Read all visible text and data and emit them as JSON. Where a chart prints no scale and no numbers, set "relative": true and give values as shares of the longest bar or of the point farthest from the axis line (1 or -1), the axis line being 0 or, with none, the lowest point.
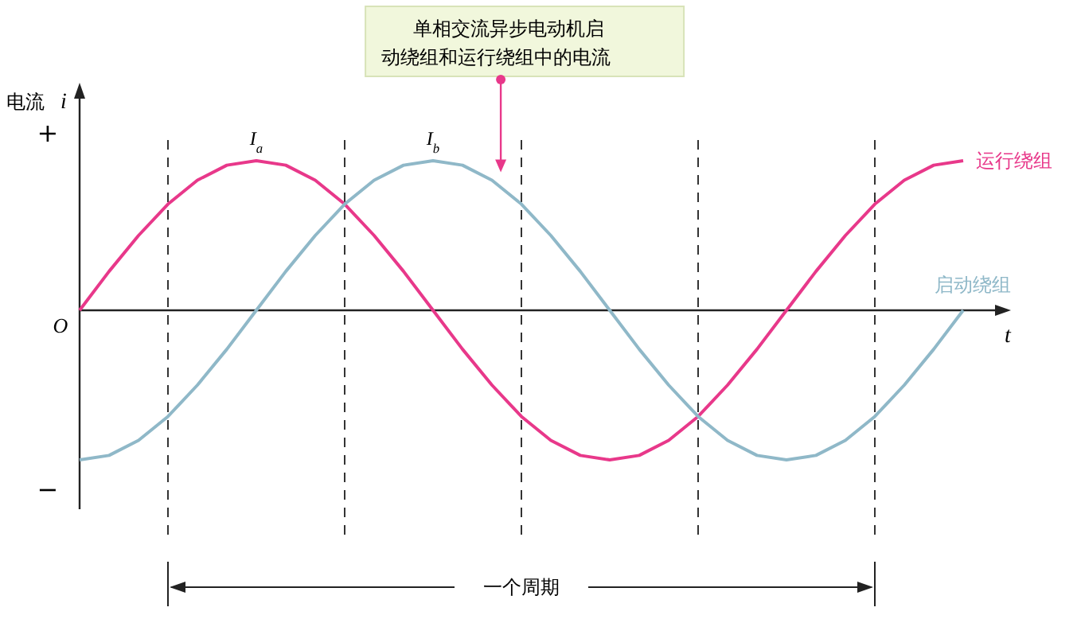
{
  "chart_data": {
    "type": "line",
    "relative": true,
    "xlabel": "t",
    "ylabel": "i",
    "categories": [
      null,
      null,
      null,
      null,
      null,
      null,
      null,
      null,
      null,
      null,
      null,
      null,
      null,
      null,
      null,
      null,
      null,
      null,
      null,
      null,
      null,
      null,
      null,
      null,
      null,
      null,
      null,
      null,
      null,
      null,
      null
    ],
    "series": [
      {
        "name": "运行绕组",
        "color": "#e8388a",
        "values": [
          0,
          0.26,
          0.5,
          0.71,
          0.87,
          0.97,
          1,
          0.97,
          0.87,
          0.71,
          0.5,
          0.26,
          0,
          -0.26,
          -0.5,
          -0.71,
          -0.87,
          -0.97,
          -1,
          -0.97,
          -0.87,
          -0.71,
          -0.5,
          -0.26,
          0,
          0.26,
          0.5,
          0.71,
          0.87,
          0.97,
          1
        ]
      },
      {
        "name": "启动绕组",
        "color": "#8fb8c8",
        "values": [
          -1,
          -0.97,
          -0.87,
          -0.71,
          -0.5,
          -0.26,
          0,
          0.26,
          0.5,
          0.71,
          0.87,
          0.97,
          1,
          0.97,
          0.87,
          0.71,
          0.5,
          0.26,
          0,
          -0.26,
          -0.5,
          -0.71,
          -0.87,
          -0.97,
          -1,
          -0.97,
          -0.87,
          -0.71,
          -0.5,
          -0.26,
          0
        ]
      }
    ],
    "line_style": "solid",
    "marker": "none",
    "legend": false,
    "grid": "x",
    "annotations": [
      "单相交流异步电动机启动绕组和运行绕组中的电流",
      "I$_{a}$",
      "I$_{b}$",
      "一个周期",
      "+",
      "−",
      "电流",
      "O"
    ]
  }
}
